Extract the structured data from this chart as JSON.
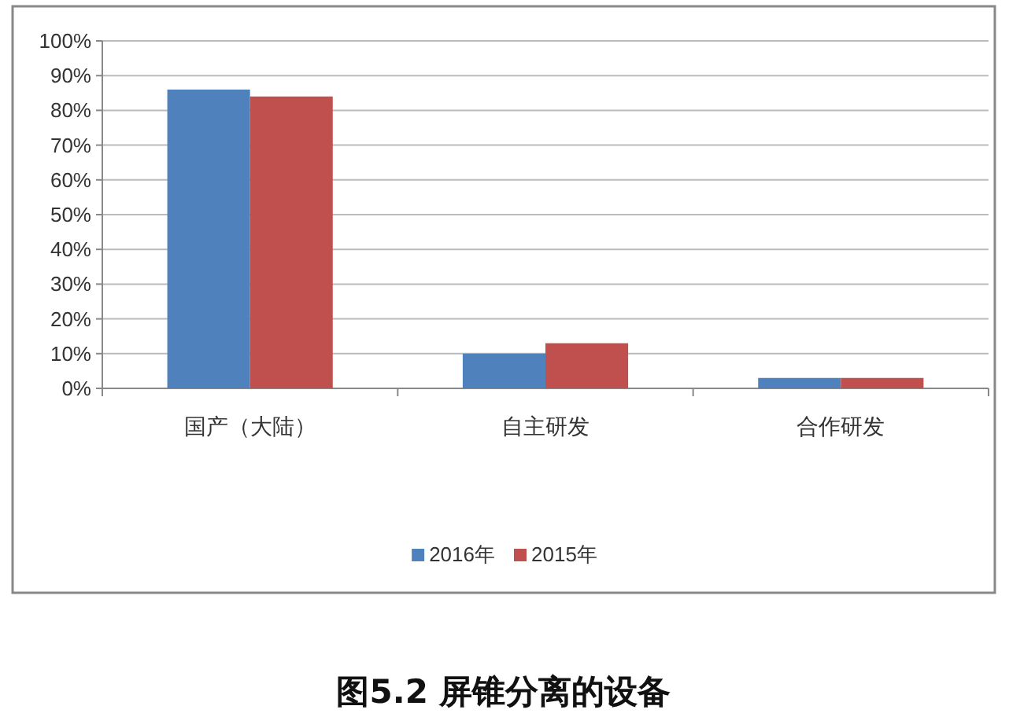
{
  "chart_data": {
    "type": "bar",
    "title": "图5.2 屏锥分离的设备",
    "categories": [
      "国产（大陆）",
      "自主研发",
      "合作研发"
    ],
    "series": [
      {
        "name": "2016年",
        "color": "#4f81bd",
        "values": [
          86,
          10,
          3
        ]
      },
      {
        "name": "2015年",
        "color": "#c0504d",
        "values": [
          84,
          13,
          3
        ]
      }
    ],
    "ylim": [
      0,
      100
    ],
    "yticks": [
      {
        "value": 0,
        "label": "0%"
      },
      {
        "value": 10,
        "label": "10%"
      },
      {
        "value": 20,
        "label": "20%"
      },
      {
        "value": 30,
        "label": "30%"
      },
      {
        "value": 40,
        "label": "40%"
      },
      {
        "value": 50,
        "label": "50%"
      },
      {
        "value": 60,
        "label": "60%"
      },
      {
        "value": 70,
        "label": "70%"
      },
      {
        "value": 80,
        "label": "80%"
      },
      {
        "value": 90,
        "label": "90%"
      },
      {
        "value": 100,
        "label": "100%"
      }
    ],
    "grid": "y",
    "legend": "bottom"
  }
}
